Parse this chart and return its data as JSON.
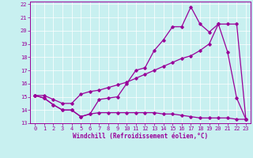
{
  "xlabel": "Windchill (Refroidissement éolien,°C)",
  "bg_color": "#c8f0f0",
  "line_color": "#990099",
  "xlim": [
    -0.5,
    23.5
  ],
  "ylim": [
    13,
    22.2
  ],
  "yticks": [
    13,
    14,
    15,
    16,
    17,
    18,
    19,
    20,
    21,
    22
  ],
  "xticks": [
    0,
    1,
    2,
    3,
    4,
    5,
    6,
    7,
    8,
    9,
    10,
    11,
    12,
    13,
    14,
    15,
    16,
    17,
    18,
    19,
    20,
    21,
    22,
    23
  ],
  "line1_x": [
    0,
    1,
    2,
    3,
    4,
    5,
    6,
    7,
    8,
    9,
    10,
    11,
    12,
    13,
    14,
    15,
    16,
    17,
    18,
    19,
    20,
    21,
    22,
    23
  ],
  "line1_y": [
    15.1,
    14.9,
    14.4,
    14.0,
    14.0,
    13.5,
    13.7,
    13.8,
    13.8,
    13.8,
    13.8,
    13.8,
    13.8,
    13.8,
    13.7,
    13.7,
    13.6,
    13.5,
    13.4,
    13.4,
    13.4,
    13.4,
    13.3,
    13.3
  ],
  "line2_x": [
    0,
    1,
    2,
    3,
    4,
    5,
    6,
    7,
    8,
    9,
    10,
    11,
    12,
    13,
    14,
    15,
    16,
    17,
    18,
    19,
    20,
    21,
    22,
    23
  ],
  "line2_y": [
    15.1,
    14.9,
    14.4,
    14.0,
    14.0,
    13.5,
    13.7,
    14.8,
    14.9,
    15.0,
    16.0,
    17.0,
    17.2,
    18.5,
    19.3,
    20.3,
    20.3,
    21.8,
    20.5,
    19.9,
    20.5,
    18.4,
    14.9,
    13.3
  ],
  "line3_x": [
    0,
    1,
    2,
    3,
    4,
    5,
    6,
    7,
    8,
    9,
    10,
    11,
    12,
    13,
    14,
    15,
    16,
    17,
    18,
    19,
    20,
    21,
    22,
    23
  ],
  "line3_y": [
    15.1,
    15.1,
    14.8,
    14.5,
    14.5,
    15.2,
    15.4,
    15.5,
    15.7,
    15.9,
    16.1,
    16.4,
    16.7,
    17.0,
    17.3,
    17.6,
    17.9,
    18.1,
    18.5,
    19.0,
    20.5,
    20.5,
    20.5,
    13.3
  ]
}
